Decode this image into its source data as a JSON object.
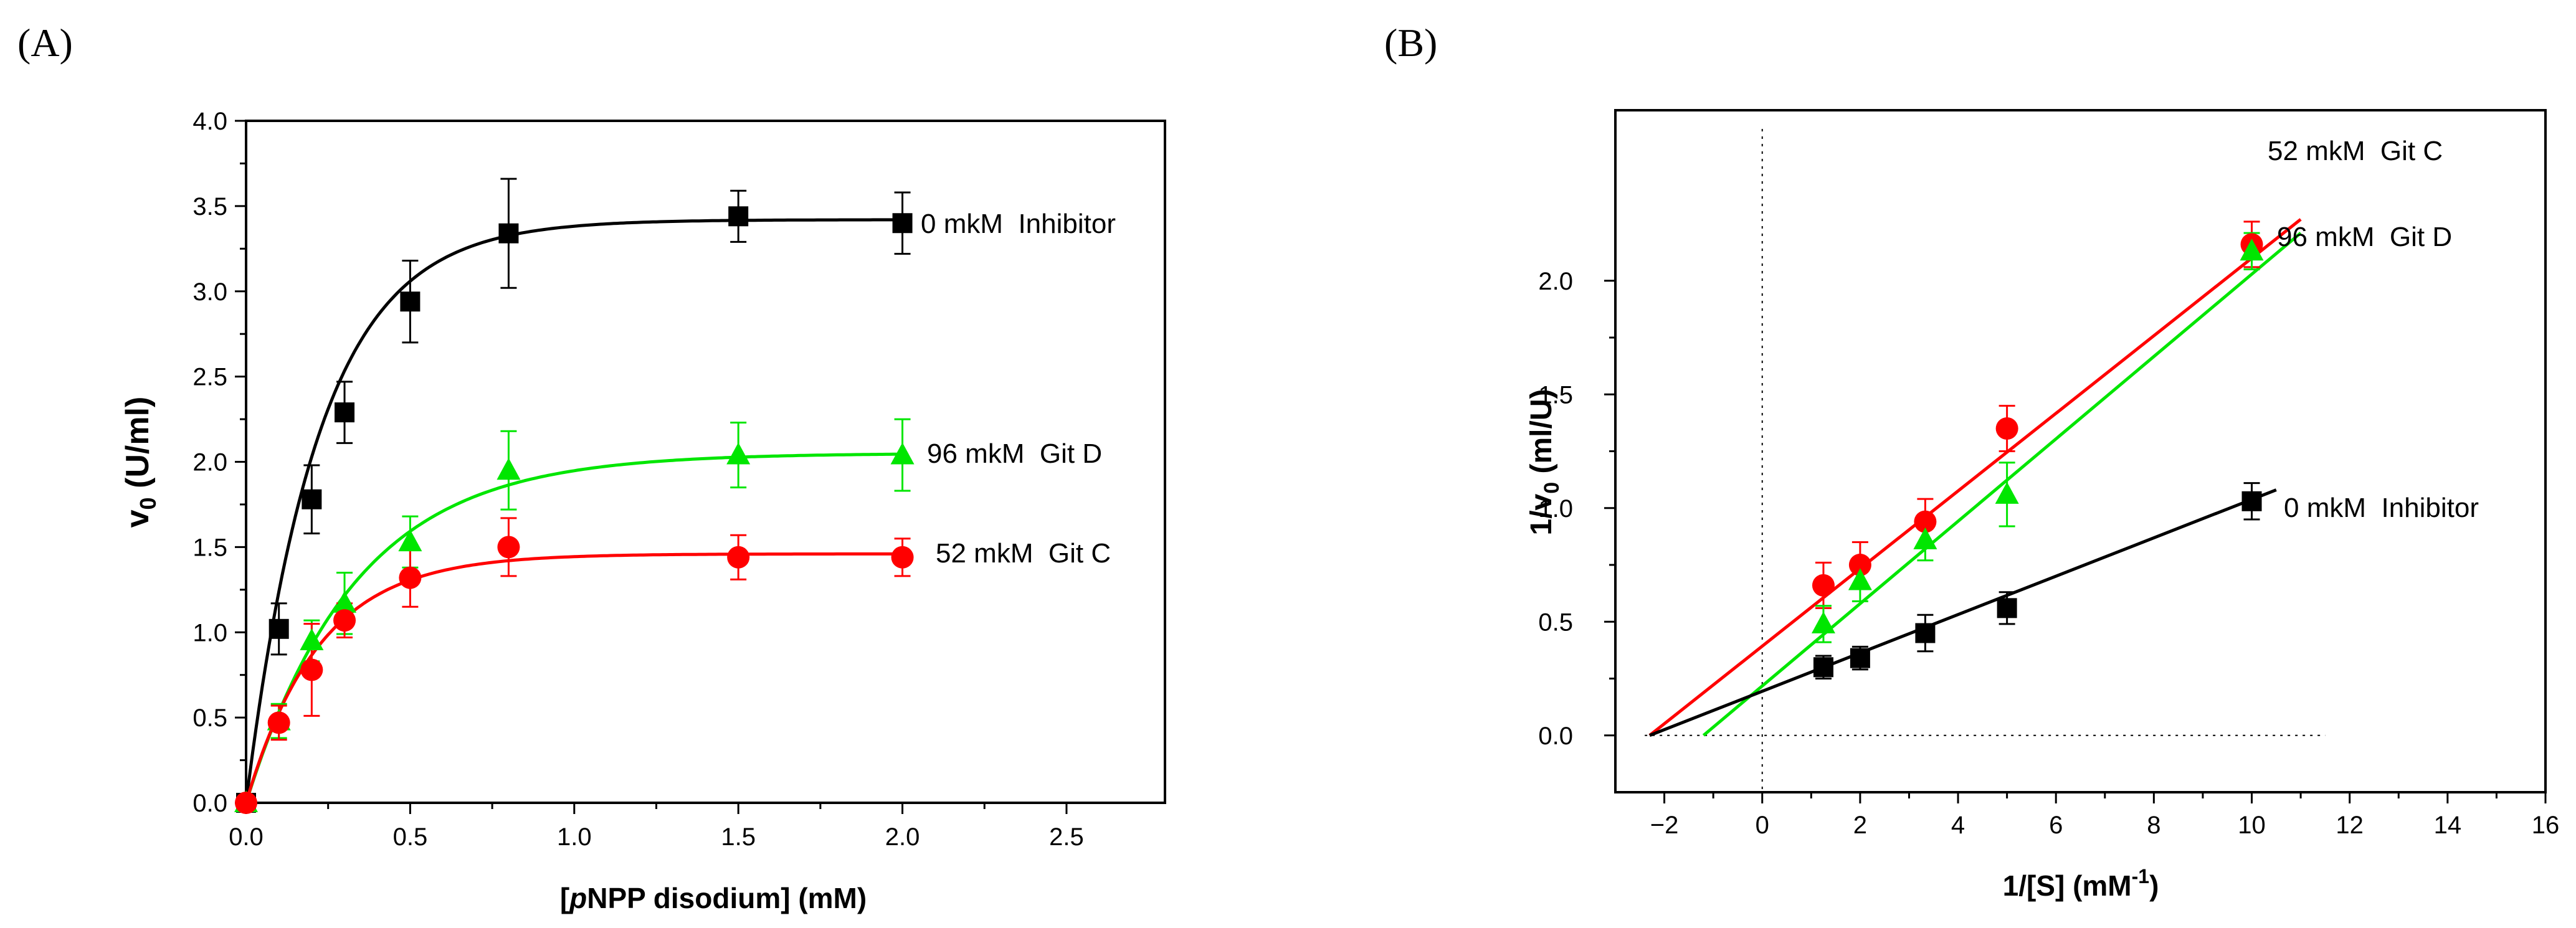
{
  "chart_data": [
    {
      "panel_label": "(A)",
      "type": "scatter",
      "xlabel_parts": [
        "[",
        "p",
        "NPP disodium] (mM)"
      ],
      "ylabel_parts": [
        "v",
        "0",
        " (U/ml)"
      ],
      "xlim": [
        0,
        2.8
      ],
      "ylim": [
        0,
        4.0
      ],
      "xticks": [
        0.0,
        0.5,
        1.0,
        1.5,
        2.0,
        2.5
      ],
      "xtick_labels": [
        "0.0",
        "0.5",
        "1.0",
        "1.5",
        "2.0",
        "2.5"
      ],
      "yticks": [
        0.0,
        0.5,
        1.0,
        1.5,
        2.0,
        2.5,
        3.0,
        3.5,
        4.0
      ],
      "ytick_labels": [
        "0.0",
        "0.5",
        "1.0",
        "1.5",
        "2.0",
        "2.5",
        "3.0",
        "3.5",
        "4.0"
      ],
      "series": [
        {
          "name": "0 mkM  Inhibitor",
          "color": "#000000",
          "marker": "square",
          "x": [
            0,
            0.1,
            0.2,
            0.3,
            0.5,
            0.8,
            1.5,
            2.0
          ],
          "y": [
            0.0,
            1.02,
            1.78,
            2.29,
            2.94,
            3.34,
            3.44,
            3.4
          ],
          "err": [
            0,
            0.15,
            0.2,
            0.18,
            0.24,
            0.32,
            0.15,
            0.18
          ],
          "curve": {
            "vmax": 3.42,
            "k": 4.5
          }
        },
        {
          "name": "96 mkM  Git D",
          "color": "#00e600",
          "marker": "triangle",
          "x": [
            0,
            0.1,
            0.2,
            0.3,
            0.5,
            0.8,
            1.5,
            2.0
          ],
          "y": [
            0.0,
            0.48,
            0.95,
            1.17,
            1.53,
            1.95,
            2.04,
            2.04
          ],
          "err": [
            0,
            0.1,
            0.12,
            0.18,
            0.15,
            0.23,
            0.19,
            0.21
          ],
          "curve": {
            "vmax": 2.05,
            "k": 3.0
          }
        },
        {
          "name": "52 mkM  Git C",
          "color": "#ff0000",
          "marker": "circle",
          "x": [
            0,
            0.1,
            0.2,
            0.3,
            0.5,
            0.8,
            1.5,
            2.0
          ],
          "y": [
            0.0,
            0.47,
            0.78,
            1.07,
            1.32,
            1.5,
            1.44,
            1.44
          ],
          "err": [
            0,
            0.1,
            0.27,
            0.1,
            0.17,
            0.17,
            0.13,
            0.11
          ],
          "curve": {
            "vmax": 1.46,
            "k": 4.5
          }
        }
      ]
    },
    {
      "panel_label": "(B)",
      "type": "scatter",
      "xlabel_parts": [
        "1/[S] (mM",
        "-1",
        ")"
      ],
      "ylabel_parts": [
        "1/v",
        "0",
        " (ml/U)"
      ],
      "xlim": [
        -3,
        16
      ],
      "ylim": [
        -0.25,
        2.75
      ],
      "xticks": [
        -2,
        0,
        2,
        4,
        6,
        8,
        10,
        12,
        14,
        16
      ],
      "xtick_labels": [
        "−2",
        "0",
        "2",
        "4",
        "6",
        "8",
        "10",
        "12",
        "14",
        "16"
      ],
      "yticks": [
        0.0,
        0.5,
        1.0,
        1.5,
        2.0
      ],
      "ytick_labels": [
        "0.0",
        "0.5",
        "1.0",
        "1.5",
        "2.0"
      ],
      "series": [
        {
          "name": "52 mkM  Git C",
          "color": "#ff0000",
          "marker": "circle",
          "x": [
            1.25,
            2,
            3.33,
            5,
            10
          ],
          "y": [
            0.66,
            0.75,
            0.94,
            1.35,
            2.16
          ],
          "err": [
            0.1,
            0.1,
            0.1,
            0.1,
            0.1
          ],
          "line": {
            "x": [
              -2.3,
              11
            ],
            "y": [
              0.0,
              2.27
            ]
          }
        },
        {
          "name": "96 mkM  Git D",
          "color": "#00e600",
          "marker": "triangle",
          "x": [
            1.25,
            2,
            3.33,
            5,
            10
          ],
          "y": [
            0.49,
            0.68,
            0.86,
            1.06,
            2.13
          ],
          "err": [
            0.08,
            0.09,
            0.09,
            0.14,
            0.08
          ],
          "line": {
            "x": [
              -1.2,
              11
            ],
            "y": [
              0.0,
              2.21
            ]
          }
        },
        {
          "name": "0 mkM  Inhibitor",
          "color": "#000000",
          "marker": "square",
          "x": [
            1.25,
            2,
            3.33,
            5,
            10
          ],
          "y": [
            0.3,
            0.34,
            0.45,
            0.56,
            1.03
          ],
          "err": [
            0.05,
            0.05,
            0.08,
            0.07,
            0.08
          ],
          "line": {
            "x": [
              -2.3,
              10.5
            ],
            "y": [
              0.0,
              1.08
            ]
          }
        }
      ]
    }
  ]
}
